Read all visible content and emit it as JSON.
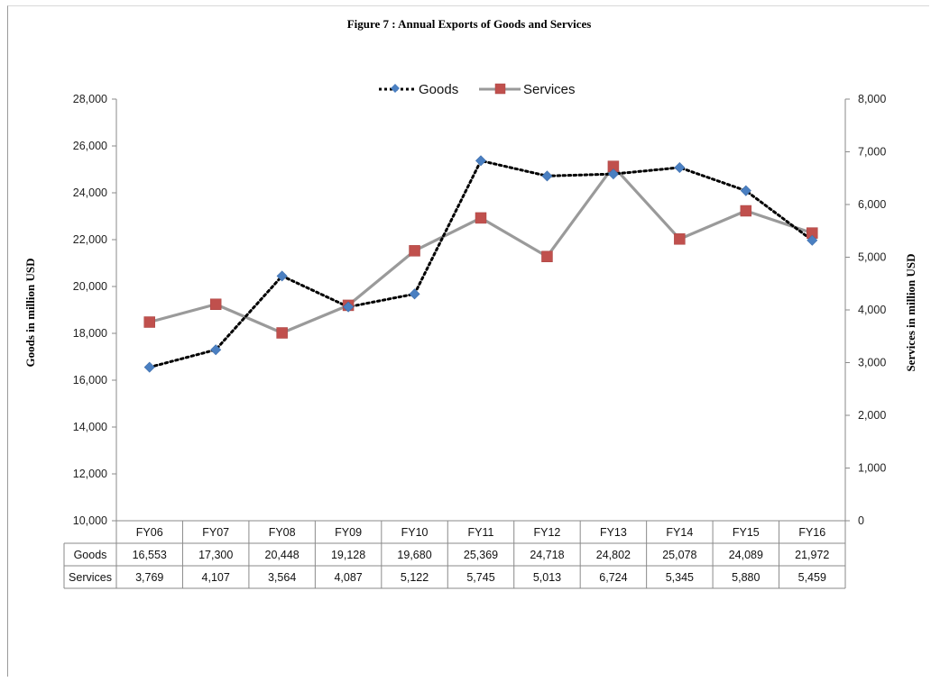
{
  "chart_data": {
    "type": "line",
    "title": "Figure  7 : Annual Exports of Goods and Services",
    "ylabel_left": "Goods in million  USD",
    "ylabel_right": "Services in million  USD",
    "categories": [
      "FY06",
      "FY07",
      "FY08",
      "FY09",
      "FY10",
      "FY11",
      "FY12",
      "FY13",
      "FY14",
      "FY15",
      "FY16"
    ],
    "series": [
      {
        "name": "Goods",
        "axis": "left",
        "values": [
          16553,
          17300,
          20448,
          19128,
          19680,
          25369,
          24718,
          24802,
          25078,
          24089,
          21972
        ],
        "labels": [
          "16,553",
          "17,300",
          "20,448",
          "19,128",
          "19,680",
          "25,369",
          "24,718",
          "24,802",
          "25,078",
          "24,089",
          "21,972"
        ],
        "color": "#4a7fc1",
        "line_color": "#000000"
      },
      {
        "name": "Services",
        "axis": "right",
        "values": [
          3769,
          4107,
          3564,
          4087,
          5122,
          5745,
          5013,
          6724,
          5345,
          5880,
          5459
        ],
        "labels": [
          "3,769",
          "4,107",
          "3,564",
          "4,087",
          "5,122",
          "5,745",
          "5,013",
          "6,724",
          "5,345",
          "5,880",
          "5,459"
        ],
        "color": "#c0504d",
        "line_color": "#9a9a9a"
      }
    ],
    "ylim_left": [
      10000,
      28000
    ],
    "ylim_right": [
      0,
      8000
    ],
    "yticks_left": [
      "10,000",
      "12,000",
      "14,000",
      "16,000",
      "18,000",
      "20,000",
      "22,000",
      "24,000",
      "26,000",
      "28,000"
    ],
    "yticks_right": [
      "0",
      "1,000",
      "2,000",
      "3,000",
      "4,000",
      "5,000",
      "6,000",
      "7,000",
      "8,000"
    ],
    "grid": false,
    "legend": "top-center",
    "data_table": true
  }
}
